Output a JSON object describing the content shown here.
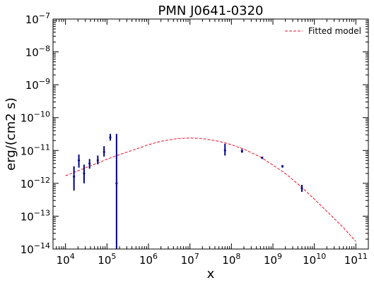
{
  "chart_data": {
    "type": "scatter",
    "title": "PMN J0641-0320",
    "xlabel": "x",
    "ylabel": "erg/(cm2 s)",
    "x_scale": "log",
    "y_scale": "log",
    "xlim": [
      5000,
      200000000000
    ],
    "ylim": [
      1e-14,
      1e-07
    ],
    "grid": false,
    "legend_position": "top-right",
    "x_tick_labels": [
      {
        "value": 10000,
        "base": "10",
        "exp": "4"
      },
      {
        "value": 100000,
        "base": "10",
        "exp": "5"
      },
      {
        "value": 1000000,
        "base": "10",
        "exp": "6"
      },
      {
        "value": 10000000,
        "base": "10",
        "exp": "7"
      },
      {
        "value": 100000000,
        "base": "10",
        "exp": "8"
      },
      {
        "value": 1000000000,
        "base": "10",
        "exp": "9"
      },
      {
        "value": 10000000000,
        "base": "10",
        "exp": "10"
      },
      {
        "value": 100000000000,
        "base": "10",
        "exp": "11"
      }
    ],
    "y_tick_labels": [
      {
        "value": 1e-14,
        "base": "10",
        "exp": "−14"
      },
      {
        "value": 1e-13,
        "base": "10",
        "exp": "−13"
      },
      {
        "value": 1e-12,
        "base": "10",
        "exp": "−12"
      },
      {
        "value": 1e-11,
        "base": "10",
        "exp": "−11"
      },
      {
        "value": 1e-10,
        "base": "10",
        "exp": "−10"
      },
      {
        "value": 1e-09,
        "base": "10",
        "exp": "−9"
      },
      {
        "value": 1e-08,
        "base": "10",
        "exp": "−8"
      },
      {
        "value": 1e-07,
        "base": "10",
        "exp": "−7"
      }
    ],
    "series": [
      {
        "name": "Fitted model",
        "kind": "line",
        "style": "dashed",
        "color": "#e8112d",
        "x": [
          10000,
          20000,
          50000,
          100000,
          200000,
          500000,
          1000000,
          2000000,
          5000000,
          10000000,
          20000000,
          50000000,
          100000000,
          200000000,
          500000000,
          1000000000,
          2000000000,
          5000000000,
          10000000000,
          20000000000,
          50000000000,
          100000000000
        ],
        "y": [
          1.7e-12,
          2.4e-12,
          3.8e-12,
          5.4e-12,
          7.5e-12,
          1.1e-11,
          1.5e-11,
          1.9e-11,
          2.3e-11,
          2.4e-11,
          2.3e-11,
          1.9e-11,
          1.5e-11,
          1.1e-11,
          6.3e-12,
          3.6e-12,
          2e-12,
          7.5e-13,
          3.3e-13,
          1.4e-13,
          4.5e-14,
          1.7e-14
        ]
      },
      {
        "kind": "errorbar",
        "color": "#00008b",
        "points": [
          {
            "x": 16000,
            "y": 1.6e-12,
            "ylo": 6e-13,
            "yhi": 3.3e-12
          },
          {
            "x": 21000,
            "y": 5e-12,
            "ylo": 3e-12,
            "yhi": 7.5e-12
          },
          {
            "x": 28000,
            "y": 2e-12,
            "ylo": 1e-12,
            "yhi": 3.7e-12
          },
          {
            "x": 38000,
            "y": 4e-12,
            "ylo": 2.8e-12,
            "yhi": 5.5e-12
          },
          {
            "x": 60000,
            "y": 5e-12,
            "ylo": 3.8e-12,
            "yhi": 7e-12
          },
          {
            "x": 85000,
            "y": 9e-12,
            "ylo": 6.5e-12,
            "yhi": 1.35e-11
          },
          {
            "x": 120000,
            "y": 2.5e-11,
            "ylo": 2e-11,
            "yhi": 3.2e-11
          },
          {
            "x": 170000,
            "y": 1e-12,
            "ylo": 1e-14,
            "yhi": 3.2e-11
          },
          {
            "x": 70000000,
            "y": 1e-11,
            "ylo": 7e-12,
            "yhi": 1.6e-11
          },
          {
            "x": 180000000,
            "y": 9.5e-12,
            "ylo": 8.5e-12,
            "yhi": 1.1e-11
          },
          {
            "x": 550000000,
            "y": 6e-12,
            "ylo": 5.5e-12,
            "yhi": 6.5e-12
          },
          {
            "x": 1700000000,
            "y": 3.3e-12,
            "ylo": 3e-12,
            "yhi": 3.6e-12
          },
          {
            "x": 5000000000,
            "y": 7e-13,
            "ylo": 5.5e-13,
            "yhi": 9e-13
          }
        ]
      }
    ]
  }
}
